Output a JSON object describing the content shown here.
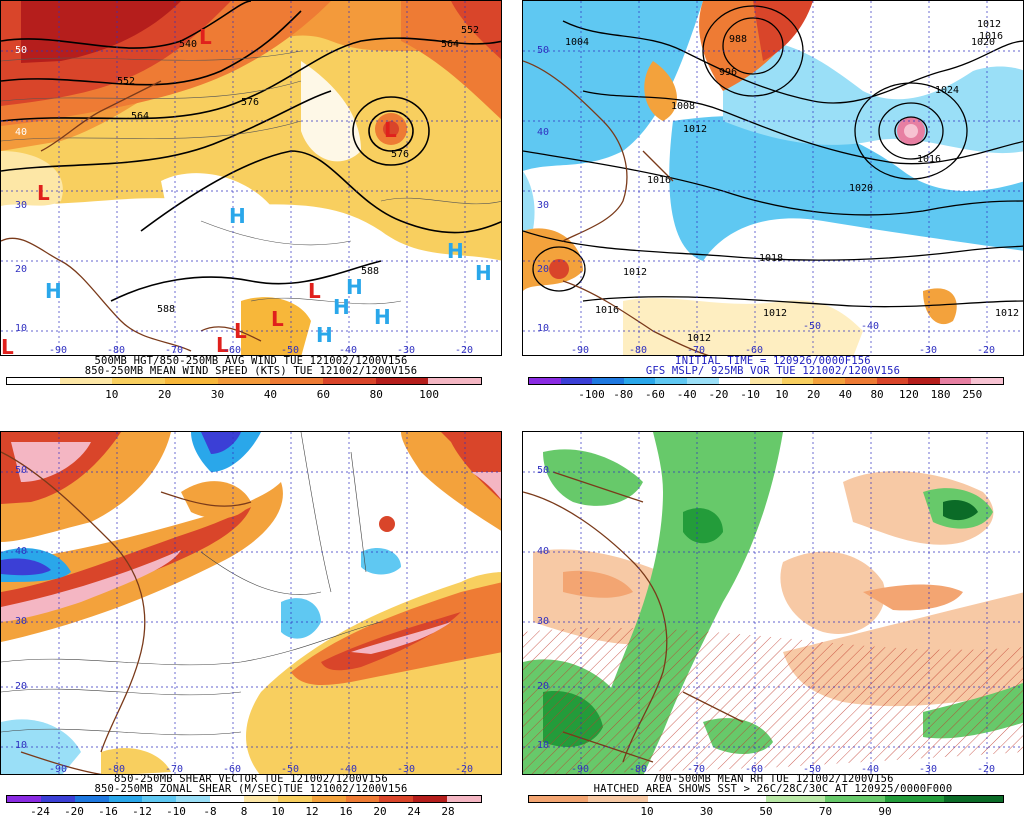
{
  "panels": [
    {
      "caption1": "500MB HGT/850-250MB AVG WIND TUE 121002/1200V156",
      "caption2": "850-250MB MEAN WIND SPEED (KTS) TUE 121002/1200V156",
      "colorbar": {
        "colors": [
          "#ffffff",
          "#fde7a6",
          "#f8cf5f",
          "#f7b73a",
          "#f39a3b",
          "#ee7b34",
          "#d9452a",
          "#b51e1c",
          "#f4b6c3"
        ],
        "ticks": [
          "10",
          "20",
          "30",
          "40",
          "60",
          "80",
          "100"
        ]
      },
      "lat_labels": [
        "50",
        "40",
        "30",
        "20",
        "10"
      ],
      "lon_labels": [
        "-90",
        "-80",
        "-70",
        "-60",
        "-50",
        "-40",
        "-30",
        "-20"
      ],
      "contour_labels": [
        "540",
        "564",
        "552",
        "552",
        "564",
        "576",
        "576",
        "588",
        "588"
      ],
      "symbols": [
        "L",
        "L",
        "L",
        "L",
        "L",
        "L",
        "L",
        "L",
        "H",
        "H",
        "H",
        "H",
        "H",
        "H",
        "H",
        "H"
      ]
    },
    {
      "caption1": "INITIAL TIME = 120926/0000F156",
      "caption2": "GFS MSLP/ 925MB VOR TUE 121002/1200V156",
      "colorbar": {
        "colors": [
          "#8a2be2",
          "#3b3fd6",
          "#1e78e0",
          "#2aa7ea",
          "#5fc8f2",
          "#9adff7",
          "#ffffff",
          "#fde7a6",
          "#f8cf5f",
          "#f3a23c",
          "#ee7b34",
          "#d9452a",
          "#b51e1c",
          "#e77fa2",
          "#f7c2d2"
        ],
        "ticks": [
          "-100",
          "-80",
          "-60",
          "-40",
          "-20",
          "-10",
          "10",
          "20",
          "40",
          "80",
          "120",
          "180",
          "250"
        ]
      },
      "lat_labels": [
        "50",
        "40",
        "30",
        "20",
        "10"
      ],
      "lon_labels": [
        "-90",
        "-80",
        "-70",
        "-60",
        "-50",
        "-40",
        "-30",
        "-20"
      ],
      "contour_labels": [
        "1004",
        "988",
        "996",
        "1008",
        "1012",
        "1016",
        "1020",
        "1024",
        "1016",
        "1012",
        "1016",
        "1020",
        "1012",
        "1018",
        "1012",
        "1016",
        "1012",
        "1012"
      ],
      "symbols": []
    },
    {
      "caption1": "850-250MB SHEAR VECTOR TUE 121002/1200V156",
      "caption2": "850-250MB ZONAL SHEAR (M/SEC)TUE 121002/1200V156",
      "colorbar": {
        "colors": [
          "#8a2be2",
          "#3b3fd6",
          "#1e78e0",
          "#2aa7ea",
          "#5fc8f2",
          "#9adff7",
          "#ffffff",
          "#fde7a6",
          "#f8cf5f",
          "#f3a23c",
          "#ee7b34",
          "#d9452a",
          "#b51e1c",
          "#f4b6c3"
        ],
        "ticks": [
          "-24",
          "-20",
          "-16",
          "-12",
          "-10",
          "-8",
          "8",
          "10",
          "12",
          "16",
          "20",
          "24",
          "28"
        ]
      },
      "lat_labels": [
        "50",
        "40",
        "30",
        "20",
        "10"
      ],
      "lon_labels": [
        "-90",
        "-80",
        "-70",
        "-60",
        "-50",
        "-40",
        "-30",
        "-20"
      ],
      "contour_labels": [],
      "symbols": []
    },
    {
      "caption1": "700-500MB MEAN RH TUE 121002/1200V156",
      "caption2": "HATCHED AREA SHOWS SST > 26C/28C/30C AT 120925/0000F000",
      "colorbar": {
        "colors": [
          "#f3a572",
          "#f7c9a5",
          "#ffffff",
          "#ffffff",
          "#b9e8a6",
          "#67c96a",
          "#239c3a",
          "#0b6b27"
        ],
        "ticks": [
          "10",
          "30",
          "50",
          "70",
          "90"
        ]
      },
      "lat_labels": [
        "50",
        "40",
        "30",
        "20",
        "10"
      ],
      "lon_labels": [
        "-90",
        "-80",
        "-70",
        "-60",
        "-50",
        "-40",
        "-30",
        "-20"
      ],
      "contour_labels": [],
      "symbols": []
    }
  ]
}
